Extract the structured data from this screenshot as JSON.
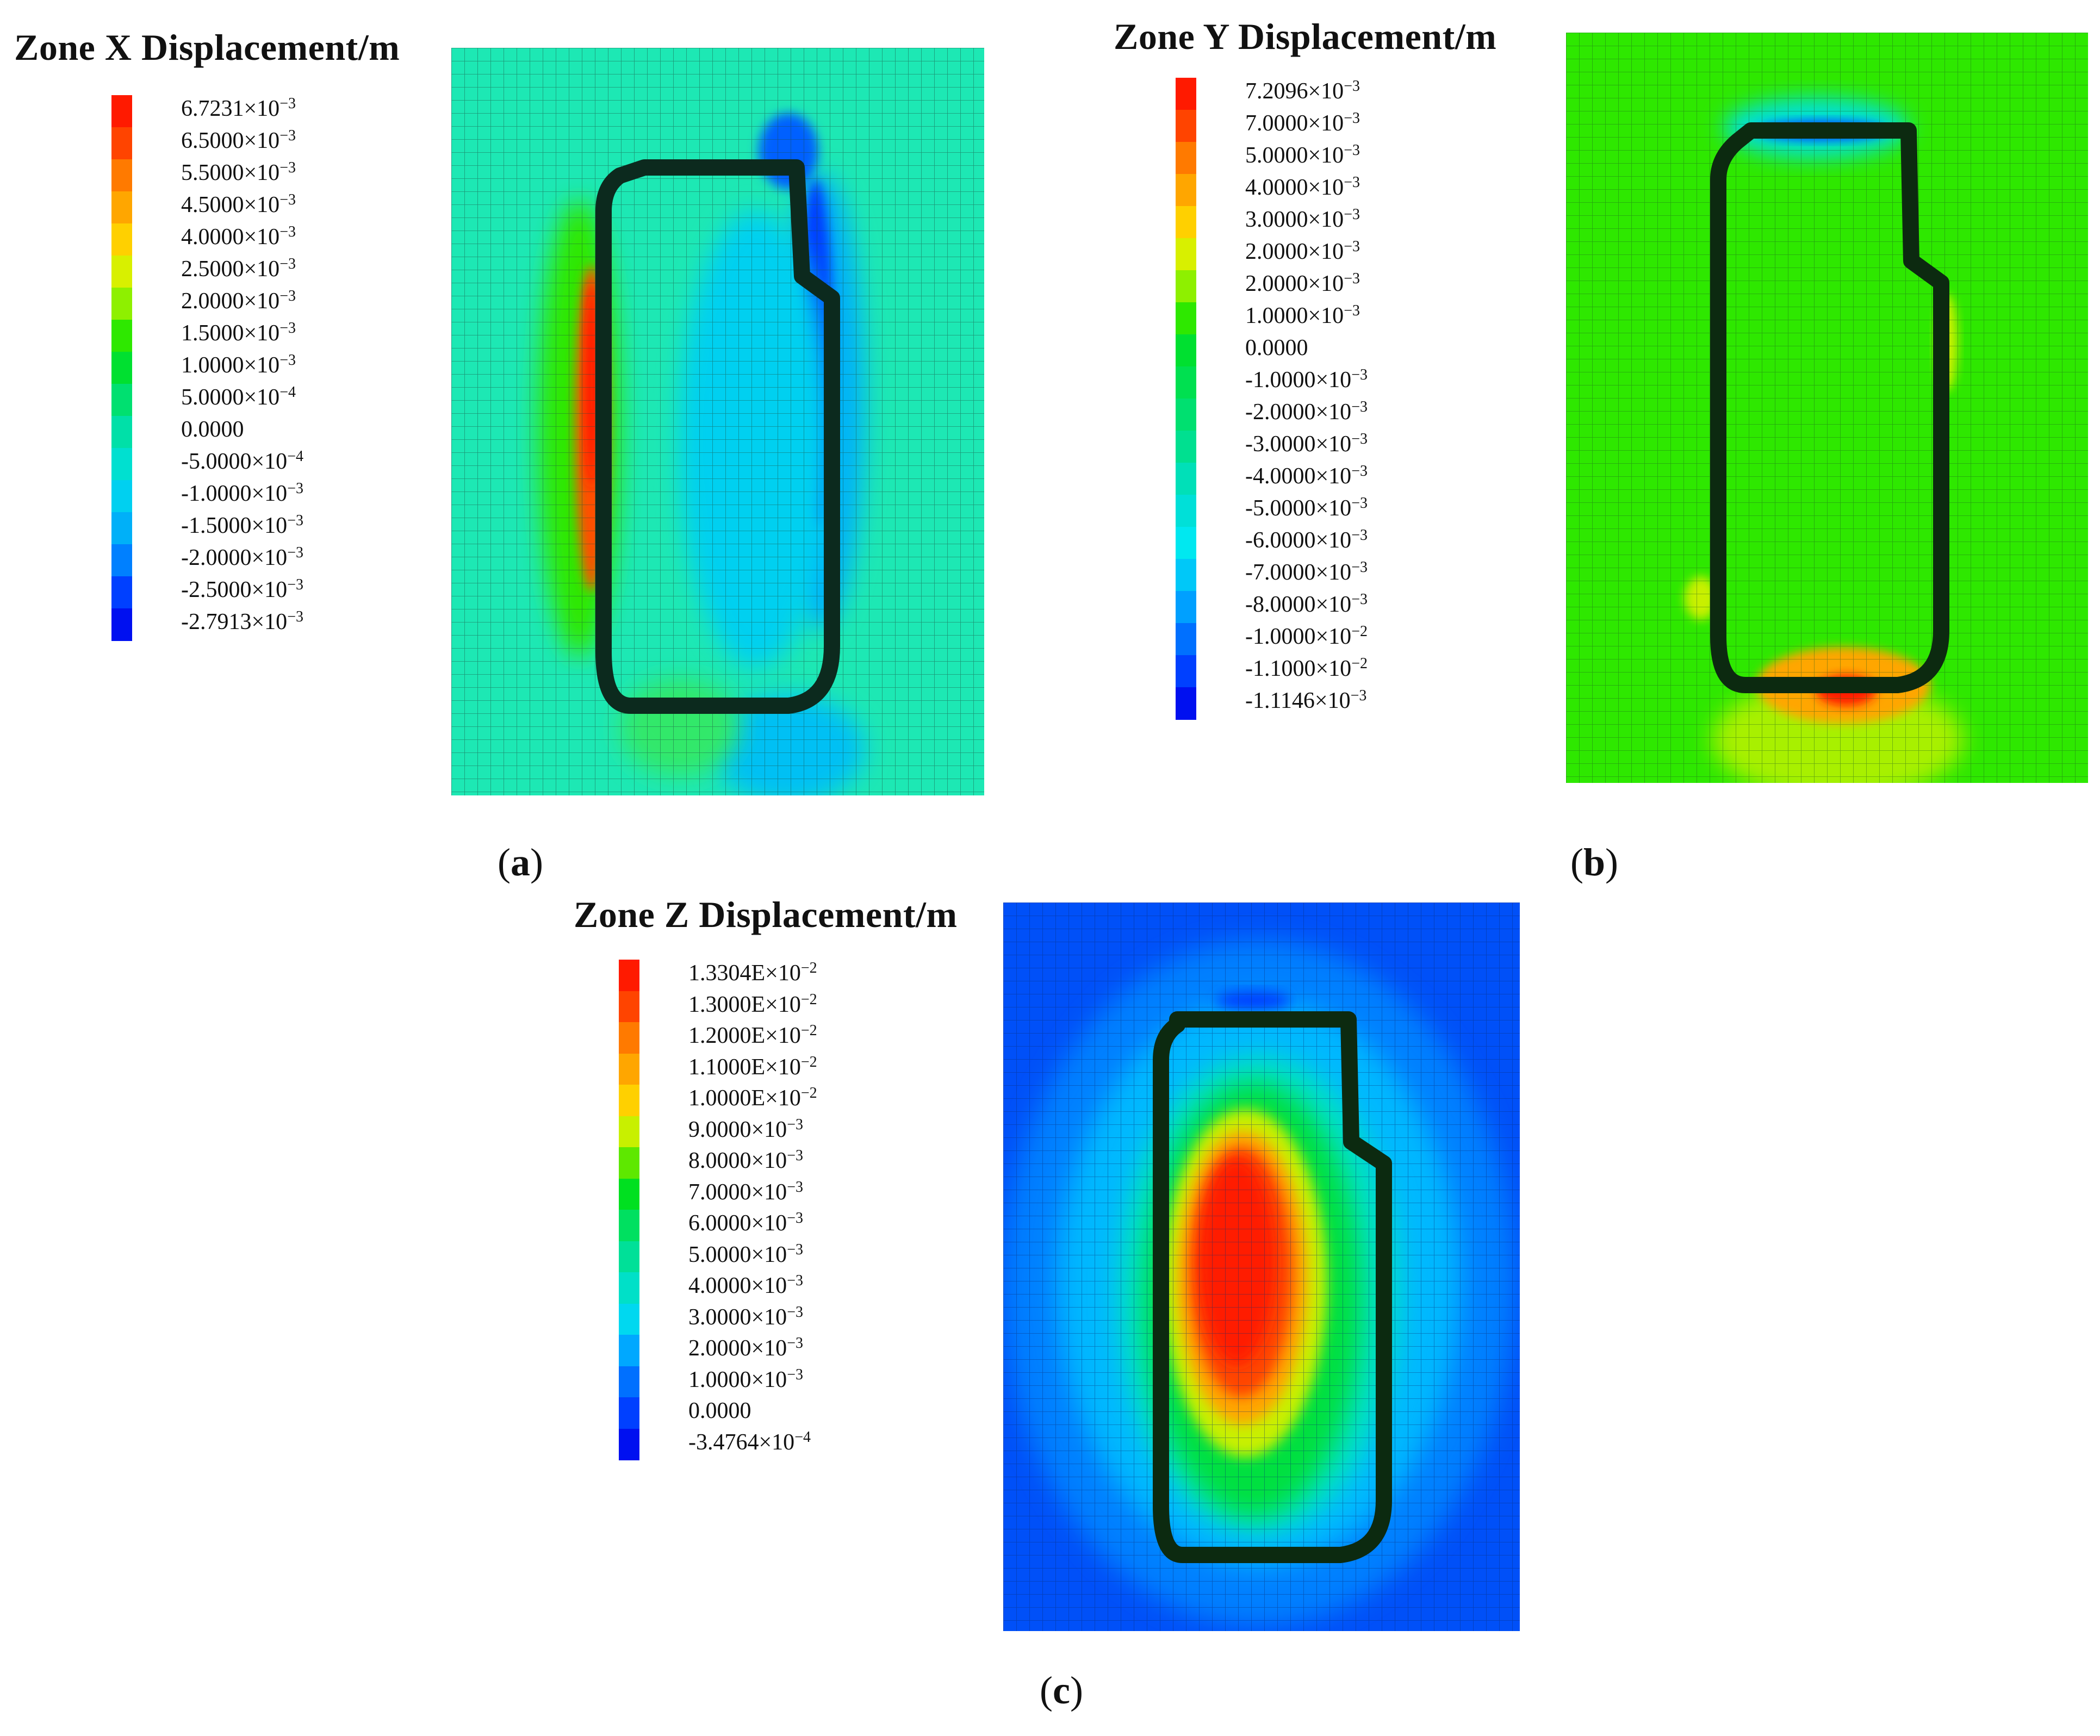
{
  "panels": [
    {
      "id": "a",
      "title": "Zone X Displacement/m",
      "caption": "a",
      "legend": [
        {
          "base": "6.7231×10",
          "exp": "−3",
          "color": "#ff1a00"
        },
        {
          "base": "6.5000×10",
          "exp": "−3",
          "color": "#ff4400"
        },
        {
          "base": "5.5000×10",
          "exp": "−3",
          "color": "#ff7a00"
        },
        {
          "base": "4.5000×10",
          "exp": "−3",
          "color": "#ffa600"
        },
        {
          "base": "4.0000×10",
          "exp": "−3",
          "color": "#ffd000"
        },
        {
          "base": "2.5000×10",
          "exp": "−3",
          "color": "#d8f000"
        },
        {
          "base": "2.0000×10",
          "exp": "−3",
          "color": "#8ef000"
        },
        {
          "base": "1.5000×10",
          "exp": "−3",
          "color": "#2ee800"
        },
        {
          "base": "1.0000×10",
          "exp": "−3",
          "color": "#00e030"
        },
        {
          "base": "5.0000×10",
          "exp": "−4",
          "color": "#00e070"
        },
        {
          "base": "0.0000",
          "exp": "",
          "color": "#00e0a8"
        },
        {
          "base": "-5.0000×10",
          "exp": "−4",
          "color": "#00e0d0"
        },
        {
          "base": "-1.0000×10",
          "exp": "−3",
          "color": "#00d0f0"
        },
        {
          "base": "-1.5000×10",
          "exp": "−3",
          "color": "#00b0f8"
        },
        {
          "base": "-2.0000×10",
          "exp": "−3",
          "color": "#0080ff"
        },
        {
          "base": "-2.5000×10",
          "exp": "−3",
          "color": "#0040ff"
        },
        {
          "base": "-2.7913×10",
          "exp": "−3",
          "color": "#0010f0"
        }
      ]
    },
    {
      "id": "b",
      "title": "Zone Y Displacement/m",
      "caption": "b",
      "legend": [
        {
          "base": "7.2096×10",
          "exp": "−3",
          "color": "#ff1a00"
        },
        {
          "base": "7.0000×10",
          "exp": "−3",
          "color": "#ff4400"
        },
        {
          "base": "5.0000×10",
          "exp": "−3",
          "color": "#ff7a00"
        },
        {
          "base": "4.0000×10",
          "exp": "−3",
          "color": "#ffa600"
        },
        {
          "base": "3.0000×10",
          "exp": "−3",
          "color": "#ffd000"
        },
        {
          "base": "2.0000×10",
          "exp": "−3",
          "color": "#d8f000"
        },
        {
          "base": "2.0000×10",
          "exp": "−3",
          "color": "#8ef000"
        },
        {
          "base": "1.0000×10",
          "exp": "−3",
          "color": "#2ee800"
        },
        {
          "base": "0.0000",
          "exp": "",
          "color": "#00e030"
        },
        {
          "base": "-1.0000×10",
          "exp": "−3",
          "color": "#00e050"
        },
        {
          "base": "-2.0000×10",
          "exp": "−3",
          "color": "#00e070"
        },
        {
          "base": "-3.0000×10",
          "exp": "−3",
          "color": "#00e090"
        },
        {
          "base": "-4.0000×10",
          "exp": "−3",
          "color": "#00e0b8"
        },
        {
          "base": "-5.0000×10",
          "exp": "−3",
          "color": "#00e0d8"
        },
        {
          "base": "-6.0000×10",
          "exp": "−3",
          "color": "#00e8f0"
        },
        {
          "base": "-7.0000×10",
          "exp": "−3",
          "color": "#00c8f8"
        },
        {
          "base": "-8.0000×10",
          "exp": "−3",
          "color": "#00a0ff"
        },
        {
          "base": "-1.0000×10",
          "exp": "−2",
          "color": "#0070ff"
        },
        {
          "base": "-1.1000×10",
          "exp": "−2",
          "color": "#0040ff"
        },
        {
          "base": "-1.1146×10",
          "exp": "−3",
          "color": "#0010f0"
        }
      ]
    },
    {
      "id": "c",
      "title": "Zone Z Displacement/m",
      "caption": "c",
      "legend": [
        {
          "base": "1.3304E×10",
          "exp": "−2",
          "color": "#ff1a00"
        },
        {
          "base": "1.3000E×10",
          "exp": "−2",
          "color": "#ff4400"
        },
        {
          "base": "1.2000E×10",
          "exp": "−2",
          "color": "#ff7a00"
        },
        {
          "base": "1.1000E×10",
          "exp": "−2",
          "color": "#ffa600"
        },
        {
          "base": "1.0000E×10",
          "exp": "−2",
          "color": "#ffd000"
        },
        {
          "base": "9.0000×10",
          "exp": "−3",
          "color": "#c8f000"
        },
        {
          "base": "8.0000×10",
          "exp": "−3",
          "color": "#5ee800"
        },
        {
          "base": "7.0000×10",
          "exp": "−3",
          "color": "#00e020"
        },
        {
          "base": "6.0000×10",
          "exp": "−3",
          "color": "#00e060"
        },
        {
          "base": "5.0000×10",
          "exp": "−3",
          "color": "#00e098"
        },
        {
          "base": "4.0000×10",
          "exp": "−3",
          "color": "#00e0c8"
        },
        {
          "base": "3.0000×10",
          "exp": "−3",
          "color": "#00d8f0"
        },
        {
          "base": "2.0000×10",
          "exp": "−3",
          "color": "#00a8ff"
        },
        {
          "base": "1.0000×10",
          "exp": "−3",
          "color": "#0070ff"
        },
        {
          "base": "0.0000",
          "exp": "",
          "color": "#0040ff"
        },
        {
          "base": "-3.4764×10",
          "exp": "−4",
          "color": "#0010f0"
        }
      ]
    }
  ]
}
